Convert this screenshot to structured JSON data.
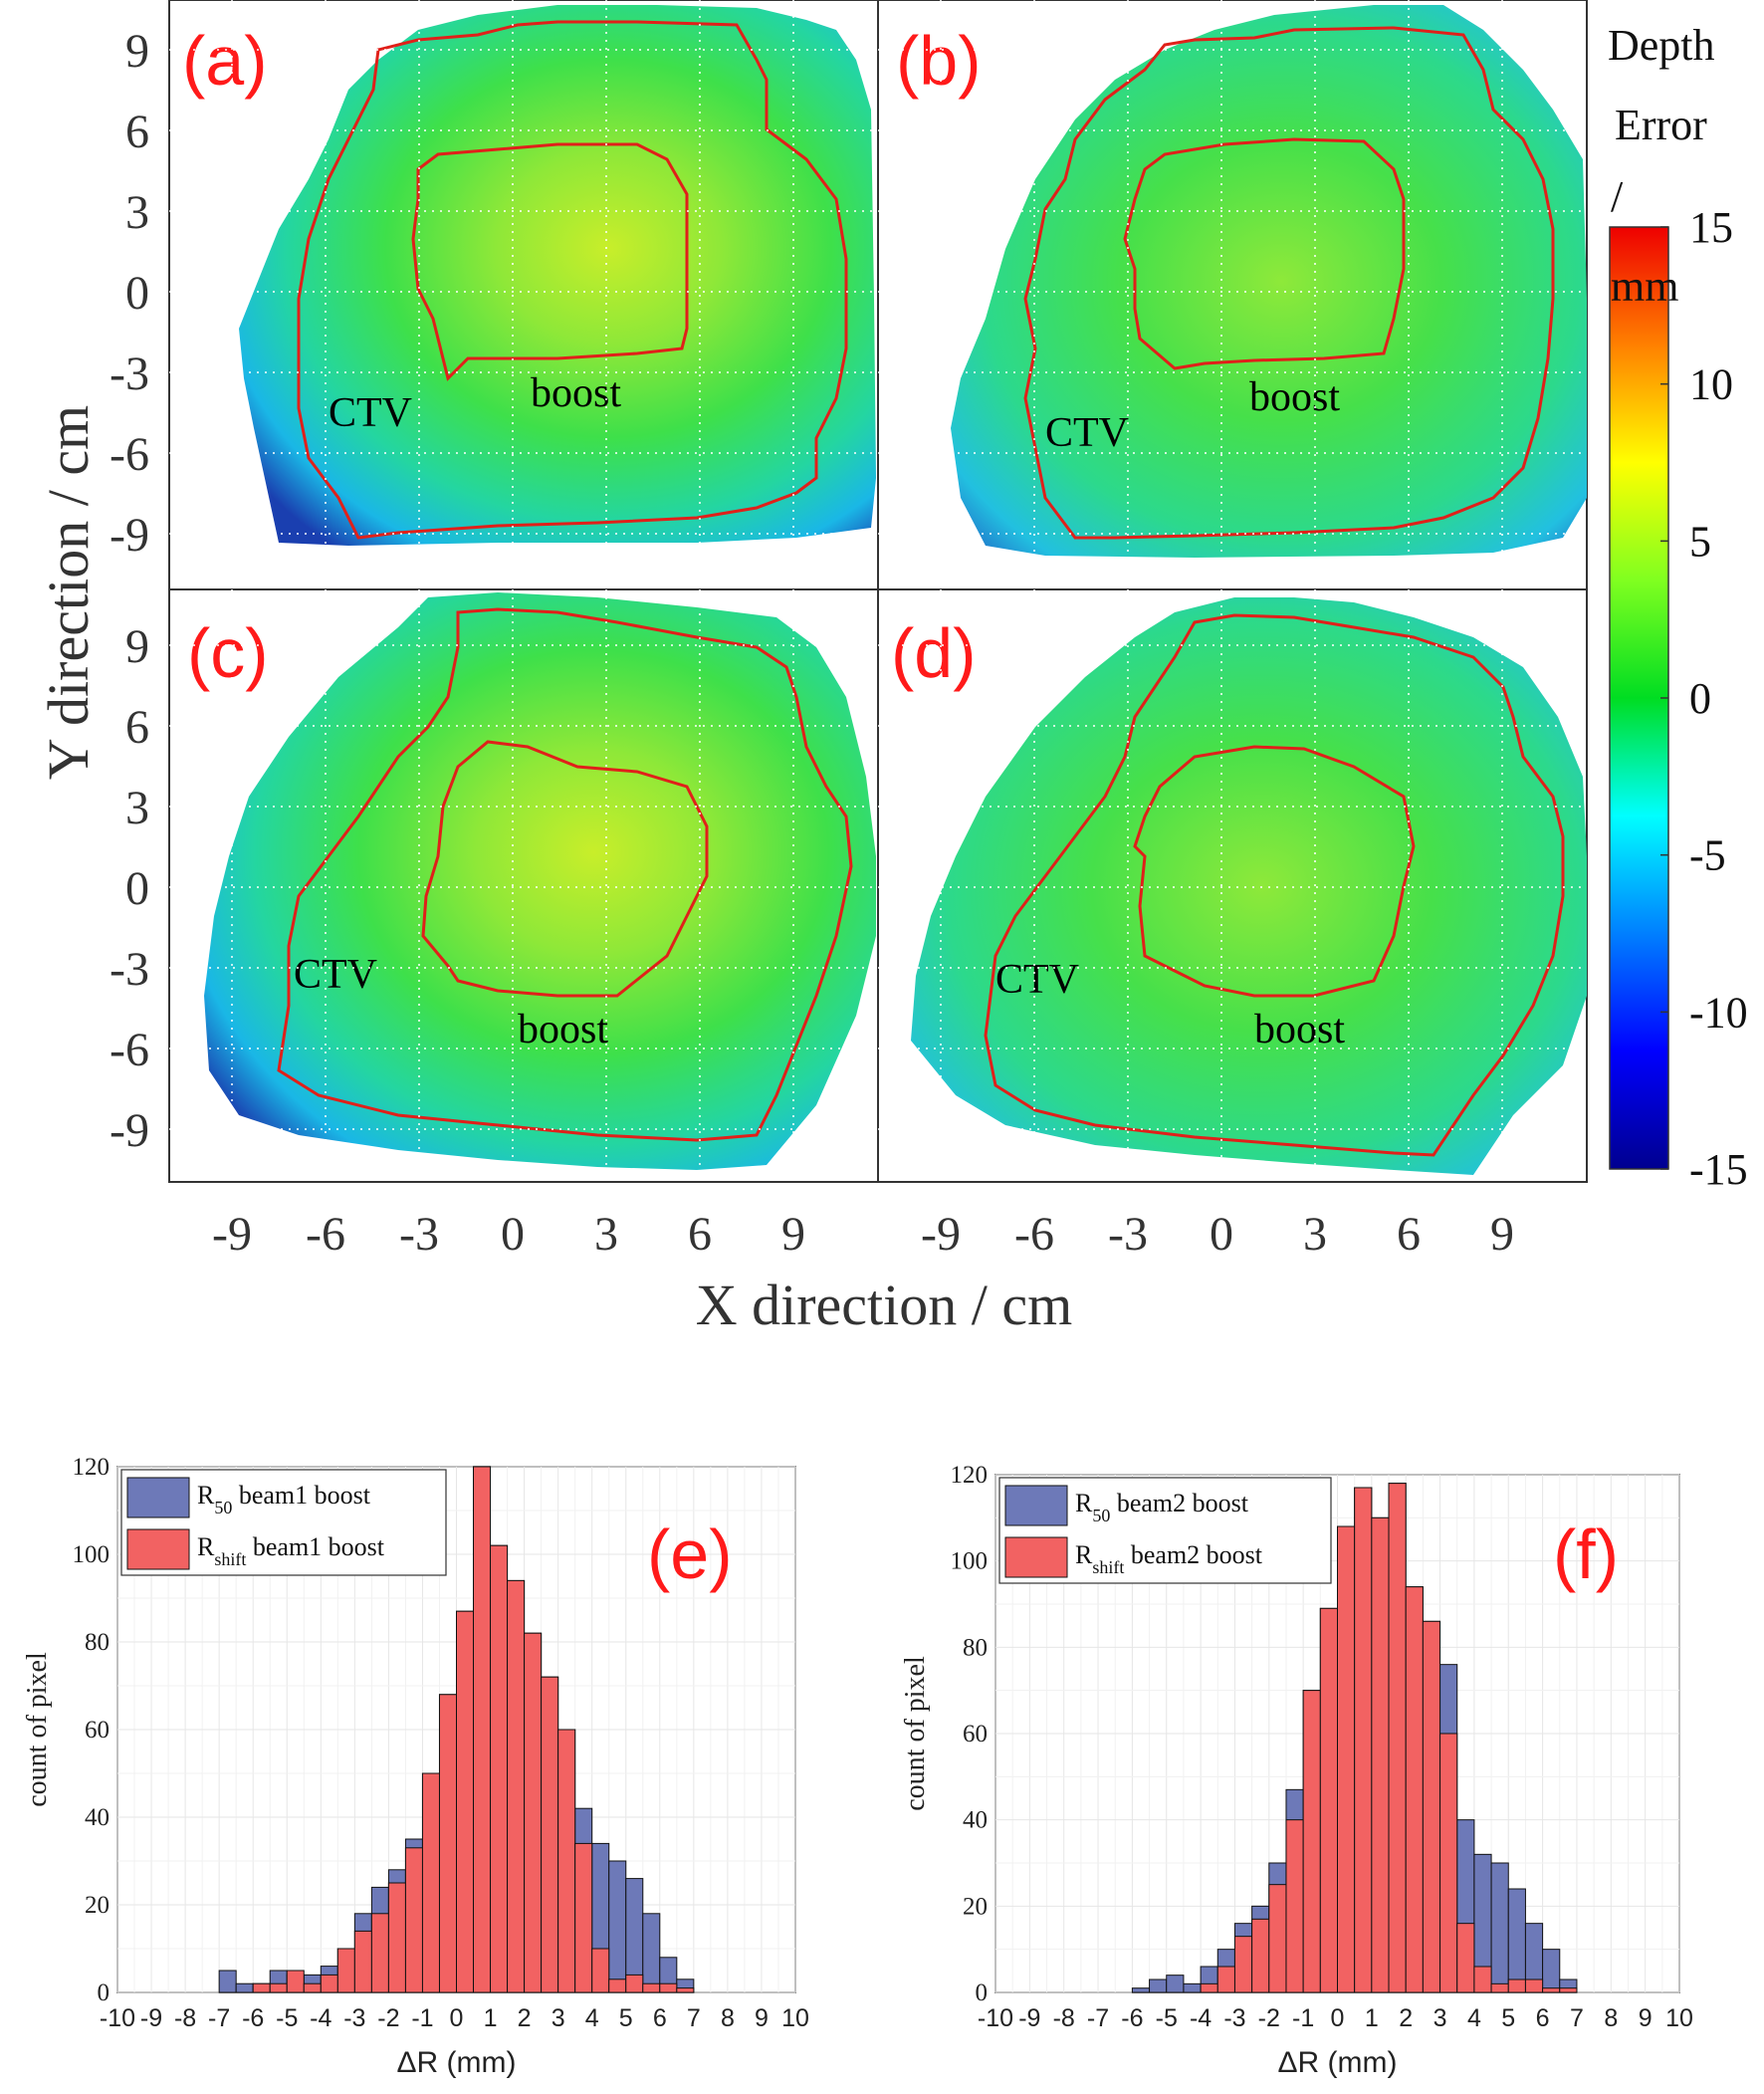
{
  "maps": {
    "x_axis_title": "X direction / cm",
    "y_axis_title": "Y direction / cm",
    "x_ticks": [
      "-9",
      "-6",
      "-3",
      "0",
      "3",
      "6",
      "9"
    ],
    "y_ticks": [
      "9",
      "6",
      "3",
      "0",
      "-3",
      "-6",
      "-9"
    ],
    "colorbar": {
      "title_line1": "Depth",
      "title_line2": "Error",
      "title_line3": "/",
      "unit": "mm",
      "ticks": [
        "15",
        "10",
        "5",
        "0",
        "-5",
        "-10",
        "-15"
      ],
      "range": [
        -15,
        15
      ],
      "colormap": "jet"
    },
    "panels": [
      {
        "tag": "(a)",
        "ctv_label": "CTV",
        "boost_label": "boost"
      },
      {
        "tag": "(b)",
        "ctv_label": "CTV",
        "boost_label": "boost"
      },
      {
        "tag": "(c)",
        "ctv_label": "CTV",
        "boost_label": "boost"
      },
      {
        "tag": "(d)",
        "ctv_label": "CTV",
        "boost_label": "boost"
      }
    ]
  },
  "chart_data": [
    {
      "type": "bar",
      "tag": "(e)",
      "title": "",
      "xlabel": "ΔR (mm)",
      "ylabel": "count of pixel",
      "x_tick_labels": [
        "-10",
        "-9",
        "-8",
        "-7",
        "-6",
        "-5",
        "-4",
        "-3",
        "-2",
        "-1",
        "0",
        "1",
        "2",
        "3",
        "4",
        "5",
        "6",
        "7",
        "8",
        "9",
        "10"
      ],
      "y_tick_labels": [
        "0",
        "20",
        "40",
        "60",
        "80",
        "100",
        "120"
      ],
      "xlim": [
        -10,
        10
      ],
      "ylim": [
        0,
        120
      ],
      "bin_width": 0.5,
      "bin_start": -10,
      "legend": [
        {
          "main": "R",
          "sub": "50",
          "rest": " beam1 boost",
          "color": "#6d79b8"
        },
        {
          "main": "R",
          "sub": "shift",
          "rest": " beam1 boost",
          "color": "#f26262"
        }
      ],
      "series": [
        {
          "name": "R50 beam1 boost",
          "color": "#6d79b8",
          "values": [
            0,
            0,
            0,
            0,
            0,
            0,
            5,
            2,
            2,
            5,
            4,
            4,
            6,
            10,
            18,
            24,
            28,
            35,
            50,
            68,
            87,
            120,
            102,
            94,
            82,
            72,
            60,
            42,
            34,
            30,
            26,
            18,
            8,
            3,
            0,
            0,
            0,
            0,
            0,
            0
          ]
        },
        {
          "name": "Rshift beam1 boost",
          "color": "#f26262",
          "values": [
            0,
            0,
            0,
            0,
            0,
            0,
            0,
            0,
            2,
            2,
            5,
            2,
            4,
            10,
            14,
            18,
            25,
            33,
            50,
            68,
            87,
            120,
            102,
            94,
            82,
            72,
            60,
            34,
            10,
            3,
            4,
            2,
            2,
            1,
            0,
            0,
            0,
            0,
            0,
            0
          ]
        }
      ]
    },
    {
      "type": "bar",
      "tag": "(f)",
      "title": "",
      "xlabel": "ΔR (mm)",
      "ylabel": "count of pixel",
      "x_tick_labels": [
        "-10",
        "-9",
        "-8",
        "-7",
        "-6",
        "-5",
        "-4",
        "-3",
        "-2",
        "-1",
        "0",
        "1",
        "2",
        "3",
        "4",
        "5",
        "6",
        "7",
        "8",
        "9",
        "10"
      ],
      "y_tick_labels": [
        "0",
        "20",
        "40",
        "60",
        "80",
        "100",
        "120"
      ],
      "xlim": [
        -10,
        10
      ],
      "ylim": [
        0,
        120
      ],
      "bin_width": 0.5,
      "bin_start": -10,
      "legend": [
        {
          "main": "R",
          "sub": "50",
          "rest": " beam2 boost",
          "color": "#6d79b8"
        },
        {
          "main": "R",
          "sub": "shift",
          "rest": " beam2 boost",
          "color": "#f26262"
        }
      ],
      "series": [
        {
          "name": "R50 beam2 boost",
          "color": "#6d79b8",
          "values": [
            0,
            0,
            0,
            0,
            0,
            0,
            0,
            0,
            1,
            3,
            4,
            2,
            6,
            10,
            16,
            20,
            30,
            47,
            70,
            89,
            108,
            117,
            110,
            118,
            94,
            86,
            76,
            40,
            32,
            30,
            24,
            16,
            10,
            3,
            0,
            0,
            0,
            0,
            0,
            0
          ]
        },
        {
          "name": "Rshift beam2 boost",
          "color": "#f26262",
          "values": [
            0,
            0,
            0,
            0,
            0,
            0,
            0,
            0,
            0,
            0,
            0,
            0,
            2,
            6,
            13,
            17,
            25,
            40,
            70,
            89,
            108,
            117,
            110,
            118,
            94,
            86,
            60,
            16,
            6,
            2,
            3,
            3,
            1,
            1,
            0,
            0,
            0,
            0,
            0,
            0
          ]
        }
      ]
    }
  ]
}
